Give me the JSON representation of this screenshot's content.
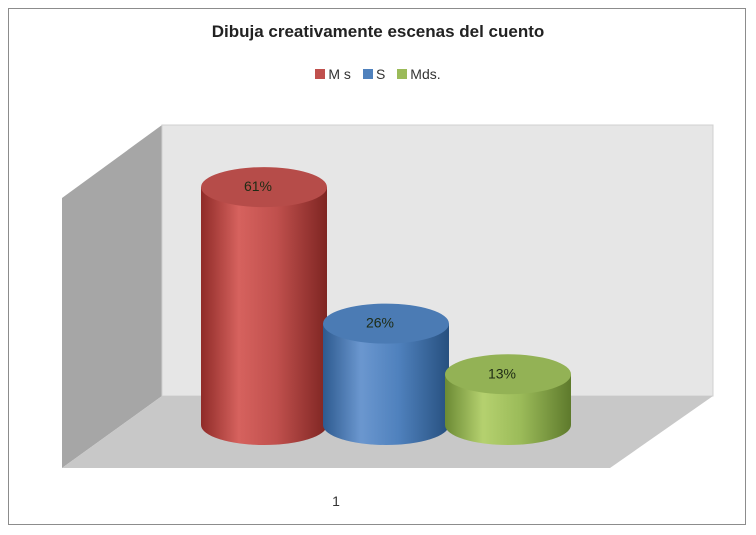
{
  "chart_data": {
    "type": "bar",
    "title": "Dibuja creativamente escenas del cuento",
    "categories": [
      "1"
    ],
    "series": [
      {
        "name": "M s",
        "values": [
          61
        ],
        "label": "61%",
        "color": "#c0504d"
      },
      {
        "name": "S",
        "values": [
          26
        ],
        "label": "26%",
        "color": "#4f81bd"
      },
      {
        "name": "Mds.",
        "values": [
          13
        ],
        "label": "13%",
        "color": "#9bbb59"
      }
    ],
    "unit": "%",
    "style": "3d-cylinder",
    "grid": false,
    "legend_position": "top"
  }
}
